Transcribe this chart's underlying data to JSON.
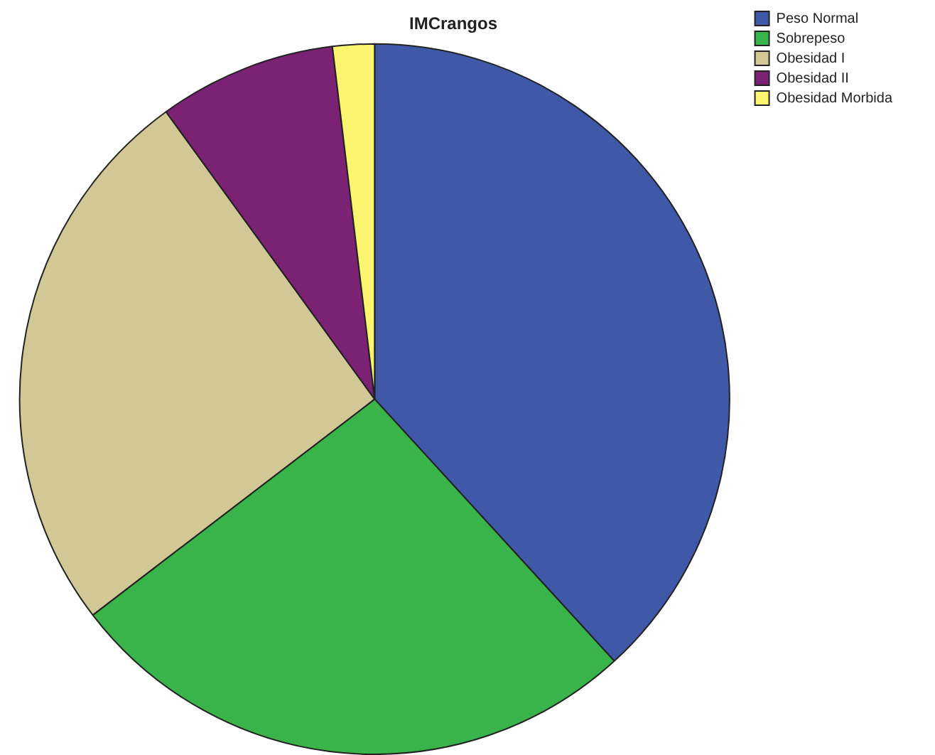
{
  "chart_data": {
    "type": "pie",
    "title": "IMCrangos",
    "categories": [
      "Peso Normal",
      "Sobrepeso",
      "Obesidad I",
      "Obesidad II",
      "Obesidad Morbida"
    ],
    "values": [
      38.2,
      26.4,
      25.4,
      8.1,
      1.9
    ],
    "colors": [
      "#3f58a8",
      "#39b44a",
      "#d2c896",
      "#7b2275",
      "#fbf56f"
    ],
    "legend": "top right"
  }
}
